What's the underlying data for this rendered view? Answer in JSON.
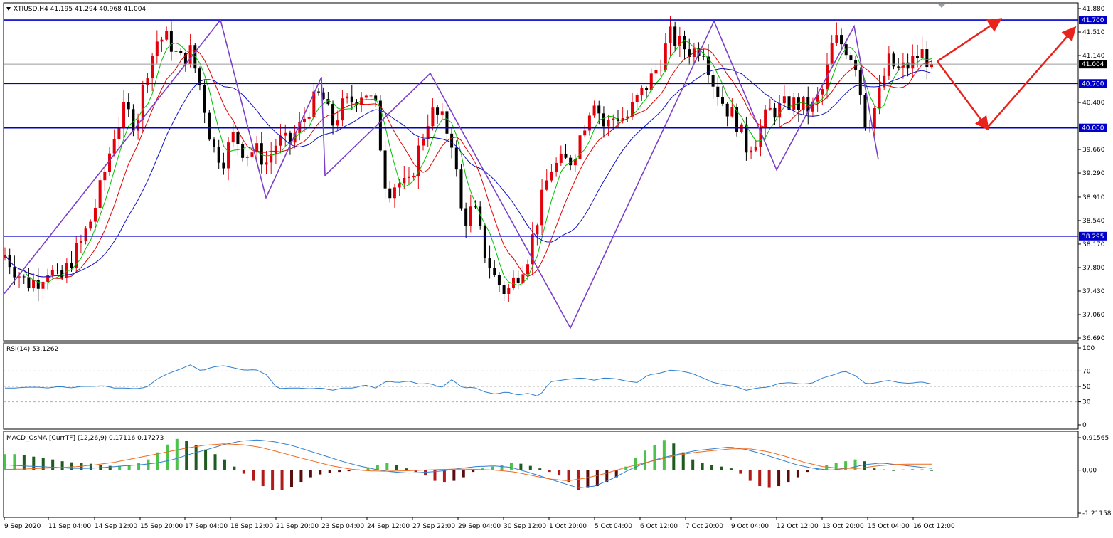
{
  "colors": {
    "bull": "#e3000b",
    "bear": "#000000",
    "ma_fast": "#00c000",
    "ma_mid": "#e00000",
    "ma_slow": "#1010c0",
    "zigzag": "#7b3fc8",
    "hline": "#0000c8",
    "arrow": "#e8231c",
    "rsi": "#2f7fd0",
    "macd_line": "#2f7fd0",
    "signal_line": "#f06a1c",
    "osma_pos_up": "#4cc24c",
    "osma_pos_down": "#1f5a1f",
    "osma_neg_down": "#b01c1c",
    "osma_neg_up": "#5a0d0d"
  },
  "main": {
    "title": "XTIUSD,H4  41.195 41.294 40.968 41.004",
    "y_ticks": [
      "41.880",
      "41.510",
      "41.140",
      "40.400",
      "39.660",
      "39.290",
      "38.910",
      "38.540",
      "38.170",
      "37.800",
      "37.430",
      "37.060",
      "36.690"
    ],
    "tags": [
      {
        "label": "41.700",
        "value": 41.7,
        "style": "blue"
      },
      {
        "label": "41.004",
        "value": 41.004,
        "style": "black"
      },
      {
        "label": "40.700",
        "value": 40.7,
        "style": "blue"
      },
      {
        "label": "40.000",
        "value": 40.0,
        "style": "blue"
      },
      {
        "label": "38.295",
        "value": 38.295,
        "style": "blue"
      }
    ]
  },
  "rsi": {
    "title": "RSI(14) 53.1262",
    "y_ticks": [
      "100",
      "70",
      "50",
      "30",
      "0"
    ]
  },
  "macd": {
    "title": "MACD_OsMA [CurrTF] (12,26,9) 0.17116 0.17273",
    "y_ticks": [
      "0.91565",
      "0.00",
      "-1.21158"
    ]
  },
  "x_labels": [
    "9 Sep 2020",
    "11 Sep 04:00",
    "14 Sep 12:00",
    "15 Sep 20:00",
    "17 Sep 04:00",
    "18 Sep 12:00",
    "21 Sep 20:00",
    "23 Sep 04:00",
    "24 Sep 12:00",
    "27 Sep 22:00",
    "29 Sep 04:00",
    "30 Sep 12:00",
    "1 Oct 20:00",
    "5 Oct 04:00",
    "6 Oct 12:00",
    "7 Oct 20:00",
    "9 Oct 04:00",
    "12 Oct 12:00",
    "13 Oct 20:00",
    "15 Oct 04:00",
    "16 Oct 12:00"
  ],
  "chart_data": [
    {
      "type": "candlestick",
      "symbol": "XTIUSD",
      "timeframe": "H4",
      "title": "XTIUSD,H4  41.195 41.294 40.968 41.004",
      "ohlc_last": {
        "open": 41.195,
        "high": 41.294,
        "low": 40.968,
        "close": 41.004
      },
      "ylim": [
        36.69,
        41.88
      ],
      "horizontal_levels": [
        41.7,
        40.7,
        40.0,
        38.295
      ],
      "current_price": 41.004,
      "candle_path": [
        38.0,
        37.75,
        37.55,
        37.6,
        37.8,
        37.55,
        37.9,
        38.2,
        38.6,
        39.2,
        39.9,
        40.3,
        40.05,
        40.9,
        41.4,
        41.4,
        41.05,
        41.2,
        40.6,
        39.7,
        39.5,
        39.9,
        39.6,
        39.65,
        39.45,
        39.8,
        39.75,
        40.0,
        40.35,
        40.55,
        40.05,
        40.35,
        40.45,
        40.6,
        40.3,
        39.0,
        39.15,
        39.05,
        39.7,
        40.25,
        40.15,
        39.8,
        38.5,
        38.75,
        38.05,
        37.6,
        37.4,
        37.7,
        38.0,
        38.7,
        39.35,
        39.45,
        39.5,
        40.0,
        40.5,
        40.0,
        40.2,
        40.15,
        40.45,
        40.7,
        41.0,
        41.45,
        41.3,
        41.2,
        41.3,
        40.7,
        40.35,
        40.15,
        39.7,
        39.85,
        40.25,
        40.3,
        40.4,
        40.35,
        40.3,
        40.6,
        41.4,
        41.3,
        41.05,
        40.0,
        40.4,
        41.05,
        40.9,
        41.0,
        41.2,
        41.004
      ],
      "zigzag": [
        {
          "x": "9 Sep 2020",
          "y": 37.39
        },
        {
          "x": "17 Sep 04:00",
          "y": 41.7
        },
        {
          "x": "18 Sep 12:00",
          "y": 38.9
        },
        {
          "x": "23 Sep 04:00",
          "y": 40.8
        },
        {
          "x": "23 Sep 04:00",
          "y": 39.25
        },
        {
          "x": "27 Sep 22:00",
          "y": 40.86
        },
        {
          "x": "1 Oct 20:00",
          "y": 36.85
        },
        {
          "x": "7 Oct 20:00",
          "y": 41.68
        },
        {
          "x": "12 Oct 12:00",
          "y": 39.34
        },
        {
          "x": "13 Oct 20:00",
          "y": 41.6
        },
        {
          "x": "15 Oct 04:00",
          "y": 39.5
        }
      ],
      "projection_arrows": [
        {
          "from": 41.05,
          "to": 41.7
        },
        {
          "from": 41.05,
          "to": 40.0
        },
        {
          "from": 40.0,
          "to": 41.56
        }
      ]
    },
    {
      "type": "line",
      "title": "RSI(14) 53.1262",
      "ylim": [
        0,
        100
      ],
      "levels": [
        70,
        50,
        30
      ],
      "last_value": 53.1262,
      "series": [
        {
          "values": [
            48,
            48,
            49,
            49,
            48,
            50,
            48,
            50,
            50,
            51,
            48,
            48,
            47,
            49,
            60,
            67,
            72,
            78,
            70,
            75,
            77,
            74,
            71,
            72,
            65,
            47,
            48,
            48,
            47,
            48,
            45,
            48,
            48,
            52,
            48,
            57,
            55,
            57,
            53,
            54,
            48,
            59,
            48,
            49,
            43,
            40,
            43,
            39,
            41,
            37,
            56,
            58,
            60,
            61,
            58,
            61,
            60,
            57,
            55,
            65,
            67,
            71,
            70,
            67,
            61,
            55,
            52,
            50,
            45,
            48,
            49,
            54,
            55,
            53,
            54,
            61,
            65,
            70,
            64,
            53,
            55,
            58,
            55,
            54,
            56,
            53.13
          ]
        }
      ]
    },
    {
      "type": "bar",
      "title": "MACD_OsMA [CurrTF] (12,26,9) 0.17116 0.17273",
      "ylim": [
        -1.21158,
        0.91565
      ],
      "last_values": {
        "osma": 0.17116,
        "signal": 0.17273
      },
      "series": [
        {
          "values": [
            0.45,
            0.45,
            0.42,
            0.38,
            0.35,
            0.3,
            0.25,
            0.22,
            0.2,
            0.18,
            0.15,
            0.12,
            0.12,
            0.15,
            0.2,
            0.3,
            0.5,
            0.72,
            0.88,
            0.82,
            0.7,
            0.58,
            0.45,
            0.3,
            0.1,
            -0.1,
            -0.3,
            -0.45,
            -0.55,
            -0.55,
            -0.48,
            -0.35,
            -0.2,
            -0.12,
            -0.08,
            -0.05,
            -0.03,
            0.02,
            0.08,
            0.15,
            0.2,
            0.15,
            0.05,
            -0.05,
            -0.15,
            -0.3,
            -0.35,
            -0.3,
            -0.2,
            -0.05,
            0.05,
            0.1,
            0.15,
            0.2,
            0.18,
            0.12,
            0.05,
            -0.05,
            -0.15,
            -0.35,
            -0.55,
            -0.5,
            -0.45,
            -0.35,
            -0.2,
            0.1,
            0.35,
            0.55,
            0.7,
            0.85,
            0.75,
            0.5,
            0.3,
            0.2,
            0.15,
            0.1,
            0.05,
            -0.1,
            -0.3,
            -0.45,
            -0.5,
            -0.45,
            -0.35,
            -0.2,
            -0.05,
            0.05,
            0.15,
            0.2,
            0.25,
            0.3,
            0.25,
            0.05,
            0.02,
            0.0,
            0.02,
            0.03,
            0.02,
            0.0
          ]
        },
        {
          "values": [
            0.15,
            0.12,
            0.1,
            0.08,
            0.05,
            0.05,
            0.08,
            0.12,
            0.15,
            0.2,
            0.3,
            0.45,
            0.58,
            0.72,
            0.82,
            0.85,
            0.8,
            0.7,
            0.55,
            0.4,
            0.25,
            0.12,
            0.02,
            -0.05,
            -0.08,
            -0.06,
            -0.02,
            0.05,
            0.1,
            0.12,
            0.08,
            -0.05,
            -0.2,
            -0.35,
            -0.5,
            -0.45,
            -0.25,
            0.0,
            0.2,
            0.35,
            0.45,
            0.55,
            0.6,
            0.65,
            0.58,
            0.45,
            0.3,
            0.15,
            0.05,
            0.0,
            0.05,
            0.15,
            0.2,
            0.15,
            0.1,
            0.05
          ]
        },
        {
          "values": [
            0.02,
            0.03,
            0.05,
            0.07,
            0.1,
            0.15,
            0.22,
            0.32,
            0.42,
            0.52,
            0.62,
            0.7,
            0.74,
            0.72,
            0.65,
            0.52,
            0.38,
            0.25,
            0.12,
            0.03,
            -0.02,
            -0.03,
            -0.02,
            0.0,
            0.02,
            0.03,
            0.02,
            0.0,
            -0.05,
            -0.15,
            -0.25,
            -0.3,
            -0.22,
            -0.1,
            0.05,
            0.18,
            0.3,
            0.42,
            0.5,
            0.55,
            0.6,
            0.6,
            0.52,
            0.38,
            0.22,
            0.1,
            0.05,
            0.05,
            0.12,
            0.16,
            0.17,
            0.17
          ]
        }
      ]
    }
  ]
}
